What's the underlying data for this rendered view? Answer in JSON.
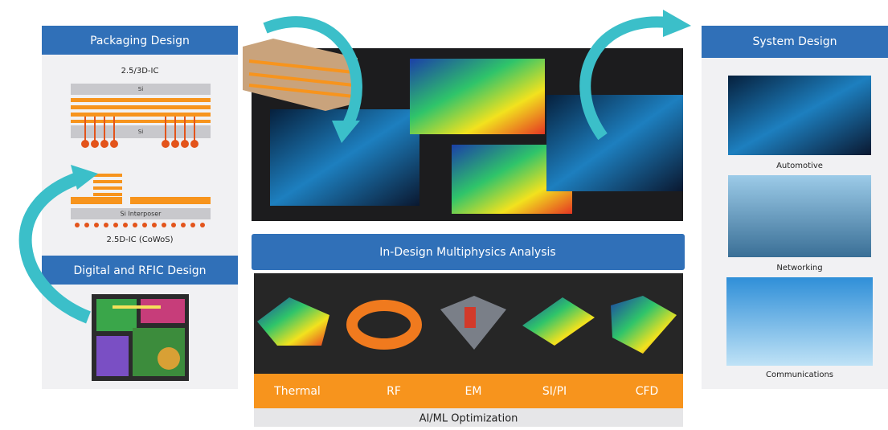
{
  "left_panel": {
    "packaging": {
      "title": "Packaging Design",
      "label_3d": "2.5/3D-IC",
      "si_top": "Si",
      "si_bottom": "Si",
      "interposer": "Si Interposer",
      "label_cowos": "2.5D-IC (CoWoS)"
    },
    "digital": {
      "title": "Digital and RFIC Design"
    }
  },
  "center": {
    "analysis_title": "In-Design Multiphysics Analysis",
    "physics": [
      "Thermal",
      "RF",
      "EM",
      "SI/PI",
      "CFD"
    ],
    "optimization": "AI/ML Optimization"
  },
  "right_panel": {
    "title": "System Design",
    "applications": [
      "Automotive",
      "Networking",
      "Communications"
    ]
  }
}
